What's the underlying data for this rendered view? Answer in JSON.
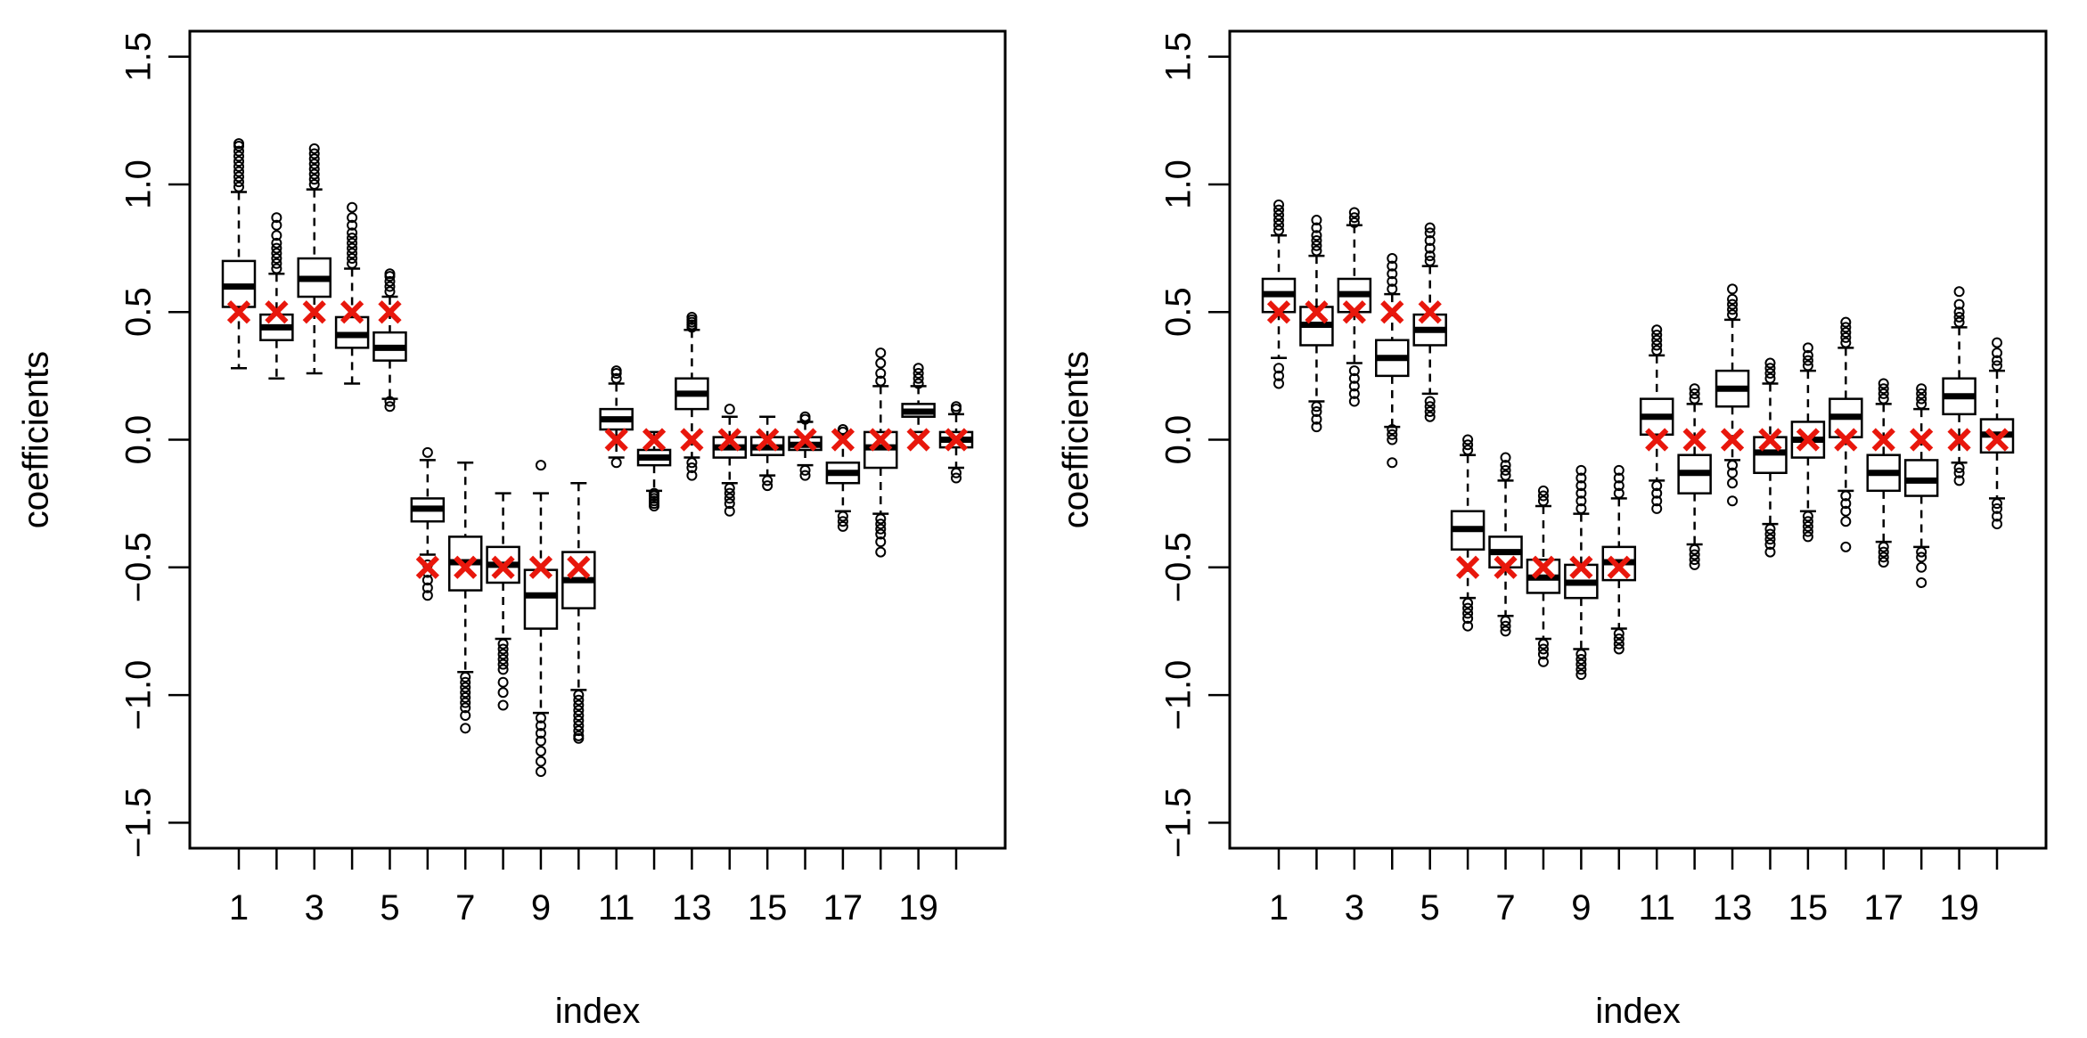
{
  "colors": {
    "truth_marker": "#e8170c",
    "box_stroke": "#000000",
    "background": "#ffffff"
  },
  "chart_data": [
    {
      "type": "boxplot",
      "title": "",
      "xlabel": "index",
      "ylabel": "coefficients",
      "ylim": [
        -1.6,
        1.6
      ],
      "yticks": [
        -1.5,
        -1.0,
        -0.5,
        0.0,
        0.5,
        1.0,
        1.5
      ],
      "ytick_labels": [
        "−1.5",
        "−1.0",
        "−0.5",
        "0.0",
        "0.5",
        "1.0",
        "1.5"
      ],
      "xticks": [
        1,
        2,
        3,
        4,
        5,
        6,
        7,
        8,
        9,
        10,
        11,
        12,
        13,
        14,
        15,
        16,
        17,
        18,
        19,
        20
      ],
      "xtick_labels": [
        "1",
        "",
        "3",
        "",
        "5",
        "",
        "7",
        "",
        "9",
        "",
        "11",
        "",
        "13",
        "",
        "15",
        "",
        "17",
        "",
        "19",
        ""
      ],
      "truth_values": [
        0.5,
        0.5,
        0.5,
        0.5,
        0.5,
        -0.5,
        -0.5,
        -0.5,
        -0.5,
        -0.5,
        0,
        0,
        0,
        0,
        0,
        0,
        0,
        0,
        0,
        0
      ],
      "boxes": [
        {
          "index": 1,
          "q1": 0.52,
          "median": 0.6,
          "q3": 0.7,
          "lower": 0.28,
          "upper": 0.97,
          "outliers": [
            0.99,
            1.01,
            1.03,
            1.05,
            1.07,
            1.09,
            1.11,
            1.13,
            1.15,
            1.16
          ]
        },
        {
          "index": 2,
          "q1": 0.39,
          "median": 0.44,
          "q3": 0.49,
          "lower": 0.24,
          "upper": 0.65,
          "outliers": [
            0.67,
            0.69,
            0.71,
            0.73,
            0.75,
            0.77,
            0.8,
            0.84,
            0.87
          ]
        },
        {
          "index": 3,
          "q1": 0.56,
          "median": 0.63,
          "q3": 0.71,
          "lower": 0.26,
          "upper": 0.98,
          "outliers": [
            1.0,
            1.02,
            1.04,
            1.06,
            1.08,
            1.1,
            1.12,
            1.14
          ]
        },
        {
          "index": 4,
          "q1": 0.36,
          "median": 0.41,
          "q3": 0.48,
          "lower": 0.22,
          "upper": 0.67,
          "outliers": [
            0.69,
            0.71,
            0.73,
            0.75,
            0.77,
            0.79,
            0.81,
            0.84,
            0.87,
            0.91
          ]
        },
        {
          "index": 5,
          "q1": 0.31,
          "median": 0.36,
          "q3": 0.42,
          "lower": 0.16,
          "upper": 0.56,
          "outliers": [
            0.13,
            0.15,
            0.58,
            0.6,
            0.62,
            0.64,
            0.65
          ]
        },
        {
          "index": 6,
          "q1": -0.32,
          "median": -0.27,
          "q3": -0.23,
          "lower": -0.45,
          "upper": -0.08,
          "outliers": [
            -0.05,
            -0.49,
            -0.52,
            -0.55,
            -0.58,
            -0.61
          ]
        },
        {
          "index": 7,
          "q1": -0.59,
          "median": -0.48,
          "q3": -0.38,
          "lower": -0.91,
          "upper": -0.09,
          "outliers": [
            -0.93,
            -0.95,
            -0.97,
            -0.99,
            -1.01,
            -1.03,
            -1.05,
            -1.08,
            -1.13
          ]
        },
        {
          "index": 8,
          "q1": -0.56,
          "median": -0.49,
          "q3": -0.42,
          "lower": -0.78,
          "upper": -0.21,
          "outliers": [
            -0.8,
            -0.82,
            -0.84,
            -0.86,
            -0.88,
            -0.9,
            -0.95,
            -0.99,
            -1.04
          ]
        },
        {
          "index": 9,
          "q1": -0.74,
          "median": -0.61,
          "q3": -0.51,
          "lower": -1.07,
          "upper": -0.21,
          "outliers": [
            -0.1,
            -1.09,
            -1.12,
            -1.15,
            -1.18,
            -1.22,
            -1.26,
            -1.3
          ]
        },
        {
          "index": 10,
          "q1": -0.66,
          "median": -0.55,
          "q3": -0.44,
          "lower": -0.98,
          "upper": -0.17,
          "outliers": [
            -1.0,
            -1.02,
            -1.04,
            -1.06,
            -1.08,
            -1.1,
            -1.12,
            -1.14,
            -1.16,
            -1.17
          ]
        },
        {
          "index": 11,
          "q1": 0.04,
          "median": 0.08,
          "q3": 0.12,
          "lower": -0.07,
          "upper": 0.22,
          "outliers": [
            -0.09,
            0.24,
            0.26,
            0.27
          ]
        },
        {
          "index": 12,
          "q1": -0.1,
          "median": -0.07,
          "q3": -0.04,
          "lower": -0.2,
          "upper": 0.03,
          "outliers": [
            -0.21,
            -0.22,
            -0.23,
            -0.24,
            -0.25,
            -0.26
          ]
        },
        {
          "index": 13,
          "q1": 0.12,
          "median": 0.18,
          "q3": 0.24,
          "lower": -0.07,
          "upper": 0.43,
          "outliers": [
            -0.09,
            -0.11,
            -0.14,
            0.44,
            0.45,
            0.46,
            0.47,
            0.48
          ]
        },
        {
          "index": 14,
          "q1": -0.07,
          "median": -0.03,
          "q3": 0.01,
          "lower": -0.17,
          "upper": 0.09,
          "outliers": [
            -0.19,
            -0.21,
            -0.23,
            -0.25,
            -0.28,
            0.12
          ]
        },
        {
          "index": 15,
          "q1": -0.06,
          "median": -0.03,
          "q3": 0.01,
          "lower": -0.14,
          "upper": 0.09,
          "outliers": [
            -0.16,
            -0.18
          ]
        },
        {
          "index": 16,
          "q1": -0.04,
          "median": -0.02,
          "q3": 0.01,
          "lower": -0.1,
          "upper": 0.07,
          "outliers": [
            -0.12,
            -0.14,
            0.08,
            0.09
          ]
        },
        {
          "index": 17,
          "q1": -0.17,
          "median": -0.13,
          "q3": -0.09,
          "lower": -0.28,
          "upper": 0.02,
          "outliers": [
            -0.3,
            -0.32,
            -0.34,
            0.03,
            0.04
          ]
        },
        {
          "index": 18,
          "q1": -0.11,
          "median": -0.03,
          "q3": 0.03,
          "lower": -0.29,
          "upper": 0.21,
          "outliers": [
            -0.31,
            -0.33,
            -0.35,
            -0.37,
            -0.4,
            -0.44,
            0.23,
            0.26,
            0.3,
            0.34
          ]
        },
        {
          "index": 19,
          "q1": 0.09,
          "median": 0.11,
          "q3": 0.14,
          "lower": 0.03,
          "upper": 0.21,
          "outliers": [
            0.22,
            0.24,
            0.26,
            0.28
          ]
        },
        {
          "index": 20,
          "q1": -0.03,
          "median": 0.0,
          "q3": 0.03,
          "lower": -0.11,
          "upper": 0.1,
          "outliers": [
            -0.13,
            -0.15,
            0.12,
            0.13
          ]
        }
      ]
    },
    {
      "type": "boxplot",
      "title": "",
      "xlabel": "index",
      "ylabel": "coefficients",
      "ylim": [
        -1.6,
        1.6
      ],
      "yticks": [
        -1.5,
        -1.0,
        -0.5,
        0.0,
        0.5,
        1.0,
        1.5
      ],
      "ytick_labels": [
        "−1.5",
        "−1.0",
        "−0.5",
        "0.0",
        "0.5",
        "1.0",
        "1.5"
      ],
      "xticks": [
        1,
        2,
        3,
        4,
        5,
        6,
        7,
        8,
        9,
        10,
        11,
        12,
        13,
        14,
        15,
        16,
        17,
        18,
        19,
        20
      ],
      "xtick_labels": [
        "1",
        "",
        "3",
        "",
        "5",
        "",
        "7",
        "",
        "9",
        "",
        "11",
        "",
        "13",
        "",
        "15",
        "",
        "17",
        "",
        "19",
        ""
      ],
      "truth_values": [
        0.5,
        0.5,
        0.5,
        0.5,
        0.5,
        -0.5,
        -0.5,
        -0.5,
        -0.5,
        -0.5,
        0,
        0,
        0,
        0,
        0,
        0,
        0,
        0,
        0,
        0
      ],
      "boxes": [
        {
          "index": 1,
          "q1": 0.5,
          "median": 0.57,
          "q3": 0.63,
          "lower": 0.32,
          "upper": 0.8,
          "outliers": [
            0.22,
            0.25,
            0.28,
            0.82,
            0.84,
            0.86,
            0.88,
            0.9,
            0.92
          ]
        },
        {
          "index": 2,
          "q1": 0.37,
          "median": 0.45,
          "q3": 0.52,
          "lower": 0.15,
          "upper": 0.72,
          "outliers": [
            0.05,
            0.08,
            0.11,
            0.13,
            0.74,
            0.76,
            0.78,
            0.8,
            0.83,
            0.86
          ]
        },
        {
          "index": 3,
          "q1": 0.5,
          "median": 0.57,
          "q3": 0.63,
          "lower": 0.3,
          "upper": 0.84,
          "outliers": [
            0.15,
            0.18,
            0.21,
            0.24,
            0.27,
            0.85,
            0.87,
            0.89
          ]
        },
        {
          "index": 4,
          "q1": 0.25,
          "median": 0.32,
          "q3": 0.39,
          "lower": 0.05,
          "upper": 0.57,
          "outliers": [
            -0.09,
            0.0,
            0.02,
            0.04,
            0.59,
            0.62,
            0.65,
            0.68,
            0.71
          ]
        },
        {
          "index": 5,
          "q1": 0.37,
          "median": 0.43,
          "q3": 0.49,
          "lower": 0.18,
          "upper": 0.68,
          "outliers": [
            0.09,
            0.11,
            0.13,
            0.15,
            0.7,
            0.72,
            0.75,
            0.78,
            0.81,
            0.83
          ]
        },
        {
          "index": 6,
          "q1": -0.43,
          "median": -0.35,
          "q3": -0.28,
          "lower": -0.62,
          "upper": -0.06,
          "outliers": [
            -0.64,
            -0.66,
            -0.68,
            -0.7,
            -0.73,
            -0.04,
            -0.02,
            0.0
          ]
        },
        {
          "index": 7,
          "q1": -0.5,
          "median": -0.44,
          "q3": -0.38,
          "lower": -0.69,
          "upper": -0.16,
          "outliers": [
            -0.71,
            -0.73,
            -0.75,
            -0.14,
            -0.12,
            -0.1,
            -0.07
          ]
        },
        {
          "index": 8,
          "q1": -0.6,
          "median": -0.54,
          "q3": -0.47,
          "lower": -0.78,
          "upper": -0.26,
          "outliers": [
            -0.8,
            -0.82,
            -0.84,
            -0.87,
            -0.24,
            -0.22,
            -0.2
          ]
        },
        {
          "index": 9,
          "q1": -0.62,
          "median": -0.56,
          "q3": -0.49,
          "lower": -0.82,
          "upper": -0.29,
          "outliers": [
            -0.84,
            -0.86,
            -0.88,
            -0.9,
            -0.92,
            -0.27,
            -0.24,
            -0.21,
            -0.18,
            -0.15,
            -0.12
          ]
        },
        {
          "index": 10,
          "q1": -0.55,
          "median": -0.48,
          "q3": -0.42,
          "lower": -0.74,
          "upper": -0.23,
          "outliers": [
            -0.76,
            -0.78,
            -0.8,
            -0.82,
            -0.21,
            -0.18,
            -0.15,
            -0.12
          ]
        },
        {
          "index": 11,
          "q1": 0.02,
          "median": 0.09,
          "q3": 0.16,
          "lower": -0.16,
          "upper": 0.33,
          "outliers": [
            -0.18,
            -0.21,
            -0.24,
            -0.27,
            0.35,
            0.37,
            0.39,
            0.41,
            0.43
          ]
        },
        {
          "index": 12,
          "q1": -0.21,
          "median": -0.13,
          "q3": -0.06,
          "lower": -0.41,
          "upper": 0.14,
          "outliers": [
            -0.43,
            -0.45,
            -0.47,
            -0.49,
            0.16,
            0.18,
            0.2
          ]
        },
        {
          "index": 13,
          "q1": 0.13,
          "median": 0.2,
          "q3": 0.27,
          "lower": -0.08,
          "upper": 0.47,
          "outliers": [
            -0.1,
            -0.13,
            -0.17,
            -0.24,
            0.49,
            0.51,
            0.53,
            0.55,
            0.59
          ]
        },
        {
          "index": 14,
          "q1": -0.13,
          "median": -0.05,
          "q3": 0.01,
          "lower": -0.33,
          "upper": 0.22,
          "outliers": [
            -0.35,
            -0.37,
            -0.39,
            -0.41,
            -0.44,
            0.24,
            0.26,
            0.28,
            0.3
          ]
        },
        {
          "index": 15,
          "q1": -0.07,
          "median": 0.0,
          "q3": 0.07,
          "lower": -0.28,
          "upper": 0.27,
          "outliers": [
            -0.3,
            -0.32,
            -0.34,
            -0.36,
            -0.38,
            0.29,
            0.31,
            0.33,
            0.36
          ]
        },
        {
          "index": 16,
          "q1": 0.01,
          "median": 0.09,
          "q3": 0.16,
          "lower": -0.2,
          "upper": 0.36,
          "outliers": [
            -0.22,
            -0.25,
            -0.28,
            -0.32,
            -0.42,
            0.38,
            0.4,
            0.42,
            0.44,
            0.46
          ]
        },
        {
          "index": 17,
          "q1": -0.2,
          "median": -0.13,
          "q3": -0.06,
          "lower": -0.4,
          "upper": 0.14,
          "outliers": [
            -0.42,
            -0.44,
            -0.46,
            -0.48,
            0.16,
            0.18,
            0.2,
            0.22
          ]
        },
        {
          "index": 18,
          "q1": -0.22,
          "median": -0.16,
          "q3": -0.08,
          "lower": -0.42,
          "upper": 0.12,
          "outliers": [
            -0.44,
            -0.46,
            -0.5,
            -0.56,
            0.14,
            0.16,
            0.18,
            0.2
          ]
        },
        {
          "index": 19,
          "q1": 0.1,
          "median": 0.17,
          "q3": 0.24,
          "lower": -0.09,
          "upper": 0.44,
          "outliers": [
            -0.11,
            -0.13,
            -0.16,
            0.46,
            0.48,
            0.5,
            0.53,
            0.58
          ]
        },
        {
          "index": 20,
          "q1": -0.05,
          "median": 0.02,
          "q3": 0.08,
          "lower": -0.23,
          "upper": 0.27,
          "outliers": [
            -0.25,
            -0.27,
            -0.3,
            -0.33,
            0.29,
            0.31,
            0.34,
            0.38
          ]
        }
      ]
    }
  ]
}
